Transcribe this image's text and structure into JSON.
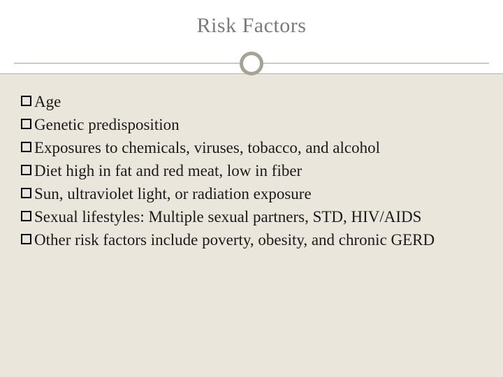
{
  "slide": {
    "title": "Risk Factors",
    "title_color": "#7a7a7a",
    "title_fontsize": 30,
    "background_color": "#eae6dc",
    "header_background": "#ffffff",
    "rule_color": "#a7a393",
    "circle_border_color": "#a7a393",
    "circle_border_width": 5,
    "bullet_style": "hollow-square",
    "bullet_border_color": "#000000",
    "body_fontsize": 23,
    "body_color": "#1a1a1a",
    "items": [
      "Age",
      "Genetic predisposition",
      "Exposures to chemicals, viruses, tobacco, and alcohol",
      "Diet high in fat and red meat, low in fiber",
      "Sun, ultraviolet light, or radiation exposure",
      "Sexual lifestyles: Multiple sexual partners, STD, HIV/AIDS",
      "Other risk factors include poverty, obesity, and chronic GERD"
    ]
  }
}
